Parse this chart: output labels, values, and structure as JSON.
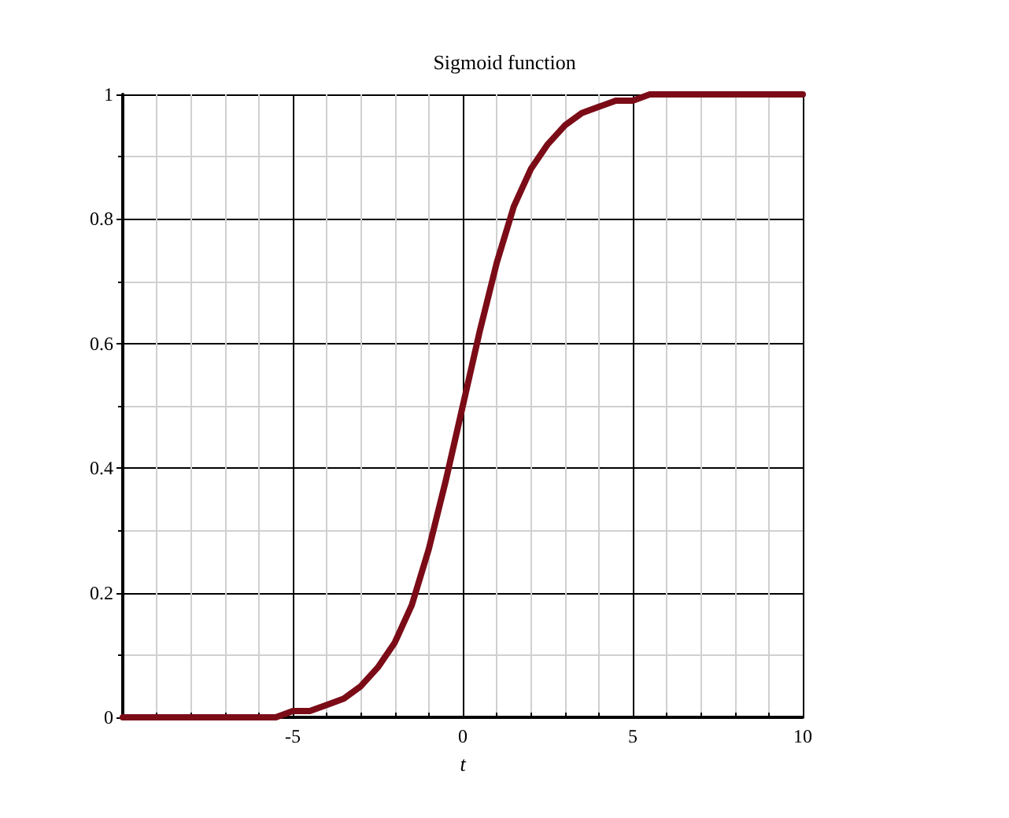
{
  "chart_data": {
    "type": "line",
    "title": "Sigmoid function",
    "xlabel": "t",
    "x": [
      -10,
      -9.5,
      -9,
      -8.5,
      -8,
      -7.5,
      -7,
      -6.5,
      -6,
      -5.5,
      -5,
      -4.5,
      -4,
      -3.5,
      -3,
      -2.5,
      -2,
      -1.5,
      -1,
      -0.5,
      0,
      0.5,
      1,
      1.5,
      2,
      2.5,
      3,
      3.5,
      4,
      4.5,
      5,
      5.5,
      6,
      6.5,
      7,
      7.5,
      8,
      8.5,
      9,
      9.5,
      10
    ],
    "series": [
      {
        "color": "#7b0c17",
        "values": [
          0,
          0,
          0,
          0,
          0,
          0,
          0,
          0,
          0,
          0,
          0.01,
          0.01,
          0.02,
          0.03,
          0.05,
          0.08,
          0.12,
          0.18,
          0.27,
          0.38,
          0.5,
          0.62,
          0.73,
          0.82,
          0.88,
          0.92,
          0.95,
          0.97,
          0.98,
          0.99,
          0.99,
          1,
          1,
          1,
          1,
          1,
          1,
          1,
          1,
          1,
          1
        ]
      }
    ],
    "xlim": [
      -10,
      10
    ],
    "xticks": [
      -5,
      0,
      5,
      10
    ],
    "ylim": [
      0,
      1
    ],
    "yticks": [
      0,
      0.2,
      0.4,
      0.6,
      0.8,
      1
    ],
    "grid": true,
    "marker": "none",
    "line_style": "solid"
  }
}
